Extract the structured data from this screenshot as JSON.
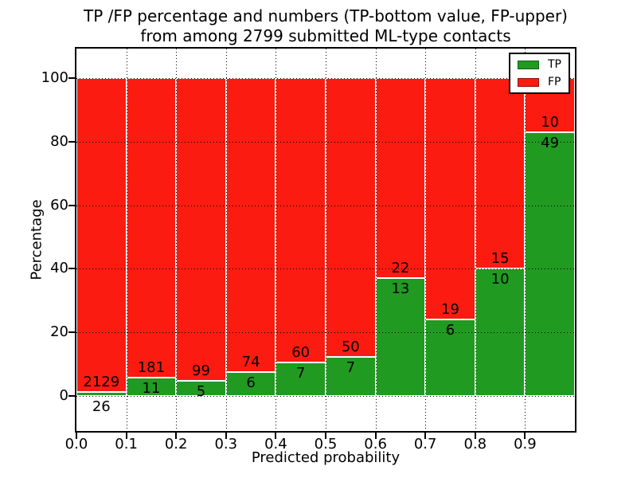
{
  "title": {
    "line1": "TP /FP percentage and numbers (TP-bottom value, FP-upper)",
    "line2": "from among 2799 submitted ML-type contacts"
  },
  "total_contacts": "2799",
  "chart_data": {
    "type": "bar",
    "stacked": true,
    "normalized_to": 100,
    "categories": [
      "0.0-0.1",
      "0.1-0.2",
      "0.2-0.3",
      "0.3-0.4",
      "0.4-0.5",
      "0.5-0.6",
      "0.6-0.7",
      "0.7-0.8",
      "0.8-0.9",
      "0.9-1.0"
    ],
    "bin_edges": [
      0.0,
      0.1,
      0.2,
      0.3,
      0.4,
      0.5,
      0.6,
      0.7,
      0.8,
      0.9,
      1.0
    ],
    "series": [
      {
        "name": "TP",
        "color": "#219a21",
        "counts": [
          26,
          11,
          5,
          6,
          7,
          7,
          13,
          6,
          10,
          49
        ],
        "percent": [
          1.21,
          5.73,
          4.81,
          7.5,
          10.45,
          12.28,
          37.14,
          24.0,
          40.0,
          83.05
        ]
      },
      {
        "name": "FP",
        "color": "#fb1b10",
        "counts": [
          2129,
          181,
          99,
          74,
          60,
          50,
          22,
          19,
          15,
          10
        ],
        "percent": [
          98.79,
          94.27,
          95.19,
          92.5,
          89.55,
          87.72,
          62.86,
          76.0,
          60.0,
          16.95
        ]
      }
    ],
    "bar_edge_color": "#ffffff",
    "xlabel": "Predicted probability",
    "ylabel": "Percentage",
    "xticks": [
      "0.0",
      "0.1",
      "0.2",
      "0.3",
      "0.4",
      "0.5",
      "0.6",
      "0.7",
      "0.8",
      "0.9"
    ],
    "yticks": [
      0,
      20,
      40,
      60,
      80,
      100
    ],
    "xlim": [
      0,
      1
    ],
    "ylim": [
      -11,
      109
    ],
    "grid": true,
    "grid_style": "dotted",
    "legend": {
      "position": "upper right",
      "entries": [
        {
          "label": "TP",
          "color": "#219a21"
        },
        {
          "label": "FP",
          "color": "#fb1b10"
        }
      ]
    }
  }
}
